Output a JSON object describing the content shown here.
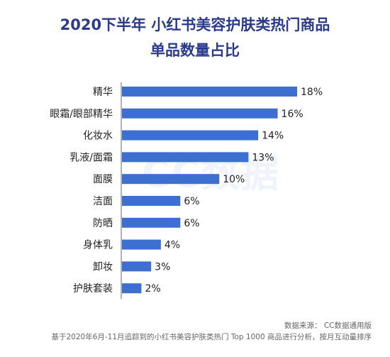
{
  "title_line1": "2020下半年 小红书美容护肤类热门商品",
  "title_line2": "单品数量占比",
  "watermark": "CC数据",
  "source": "数据来源：  CC数据通用版",
  "note": "基于2020年6月-11月追踪到的小红书美容护肤类热门 Top 1000 商品进行分析，按月互动量排序",
  "colors": {
    "bar": "#3d6fd1",
    "title": "#2a3a8c"
  },
  "chart_data": {
    "type": "bar",
    "orientation": "horizontal",
    "categories": [
      "精华",
      "眼霜/眼部精华",
      "化妆水",
      "乳液/面霜",
      "面膜",
      "洁面",
      "防晒",
      "身体乳",
      "卸妆",
      "护肤套装"
    ],
    "values": [
      18,
      16,
      14,
      13,
      10,
      6,
      6,
      4,
      3,
      2
    ],
    "value_labels": [
      "18%",
      "16%",
      "14%",
      "13%",
      "10%",
      "6%",
      "6%",
      "4%",
      "3%",
      "2%"
    ],
    "xlim": [
      0,
      18
    ]
  }
}
